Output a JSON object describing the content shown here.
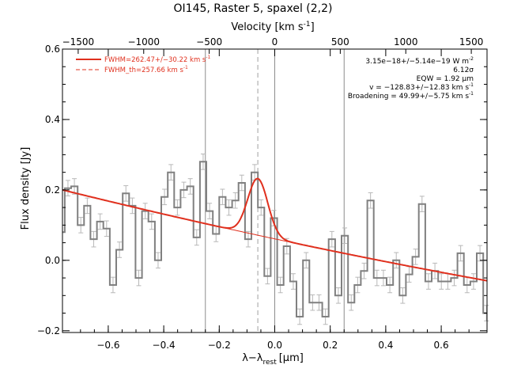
{
  "chart_data": {
    "type": "line",
    "title": "OI145, Raster 5, spaxel (2,2)",
    "xlabel": "λ−λ",
    "xlabel_sub": "rest",
    "xlabel_unit": "[μm]",
    "ylabel": "Flux density [Jy]",
    "top_axis_label": "Velocity [km s",
    "top_axis_label_sup": "-1",
    "top_axis_label_end": "]",
    "xlim": [
      -0.765,
      0.765
    ],
    "ylim": [
      -0.205,
      0.6
    ],
    "top_xlim": [
      -1620,
      1620
    ],
    "x_ticks": [
      -0.6,
      -0.4,
      -0.2,
      0.0,
      0.2,
      0.4,
      0.6
    ],
    "x_tick_labels": [
      "−0.6",
      "−0.4",
      "−0.2",
      "0.0",
      "0.2",
      "0.4",
      "0.6"
    ],
    "y_ticks": [
      -0.2,
      0.0,
      0.2,
      0.4,
      0.6
    ],
    "y_tick_labels": [
      "−0.2",
      "0.0",
      "0.2",
      "0.4",
      "0.6"
    ],
    "top_ticks": [
      -1500,
      -1000,
      -500,
      0,
      500,
      1000,
      1500
    ],
    "top_tick_labels": [
      "−1500",
      "−1000",
      "−500",
      "0",
      "500",
      "1000",
      "1500"
    ],
    "vertical_lines_solid": [
      -0.25,
      0.0,
      0.25
    ],
    "vertical_lines_dashed": [
      -0.061
    ],
    "legend": [
      {
        "text": "FWHM=262.47+/−30.22 km s",
        "sup": "-1",
        "style": "solid",
        "color": "#e0301e"
      },
      {
        "text": "FWHM_th=257.66 km s",
        "sup": "-1",
        "style": "dashed",
        "color": "#e0301e"
      }
    ],
    "annotations": [
      {
        "text": "3.15e−18+/−5.14e−19 W m",
        "sup": "-2"
      },
      {
        "text": "6.12σ",
        "sup": ""
      },
      {
        "text": "EQW = 1.92 μm",
        "sup": ""
      },
      {
        "text": "v = −128.83+/−12.83 km s",
        "sup": "-1"
      },
      {
        "text": "Broadening = 49.99+/−5.75 km s",
        "sup": "-1"
      }
    ],
    "spectrum": {
      "name": "data",
      "color": "#808080",
      "error_color": "#b8b8b8",
      "x_start": -0.78,
      "step": 0.0232,
      "y": [
        0.08,
        0.205,
        0.21,
        0.1,
        0.155,
        0.06,
        0.11,
        0.09,
        -0.07,
        0.03,
        0.19,
        0.155,
        -0.05,
        0.14,
        0.11,
        0.0,
        0.18,
        0.25,
        0.15,
        0.2,
        0.21,
        0.065,
        0.28,
        0.14,
        0.075,
        0.18,
        0.15,
        0.17,
        0.22,
        0.06,
        0.25,
        0.15,
        -0.045,
        0.12,
        -0.07,
        0.04,
        -0.06,
        -0.16,
        0.0,
        -0.12,
        -0.12,
        -0.16,
        0.06,
        -0.1,
        0.07,
        -0.12,
        -0.07,
        -0.03,
        0.17,
        -0.05,
        -0.05,
        -0.07,
        0.0,
        -0.1,
        -0.04,
        0.01,
        0.16,
        -0.06,
        -0.03,
        -0.06,
        -0.06,
        -0.05,
        0.02,
        -0.07,
        -0.06,
        0.02,
        -0.15,
        -0.08
      ],
      "error": 0.022
    },
    "fit_total": {
      "name": "fit",
      "color": "#e0301e",
      "continuum_at_xmin": 0.2,
      "continuum_at_xmax": -0.058,
      "continuum_curvature": 0.04,
      "gauss_center": -0.061,
      "gauss_sigma": 0.036,
      "gauss_amp": 0.161
    }
  }
}
